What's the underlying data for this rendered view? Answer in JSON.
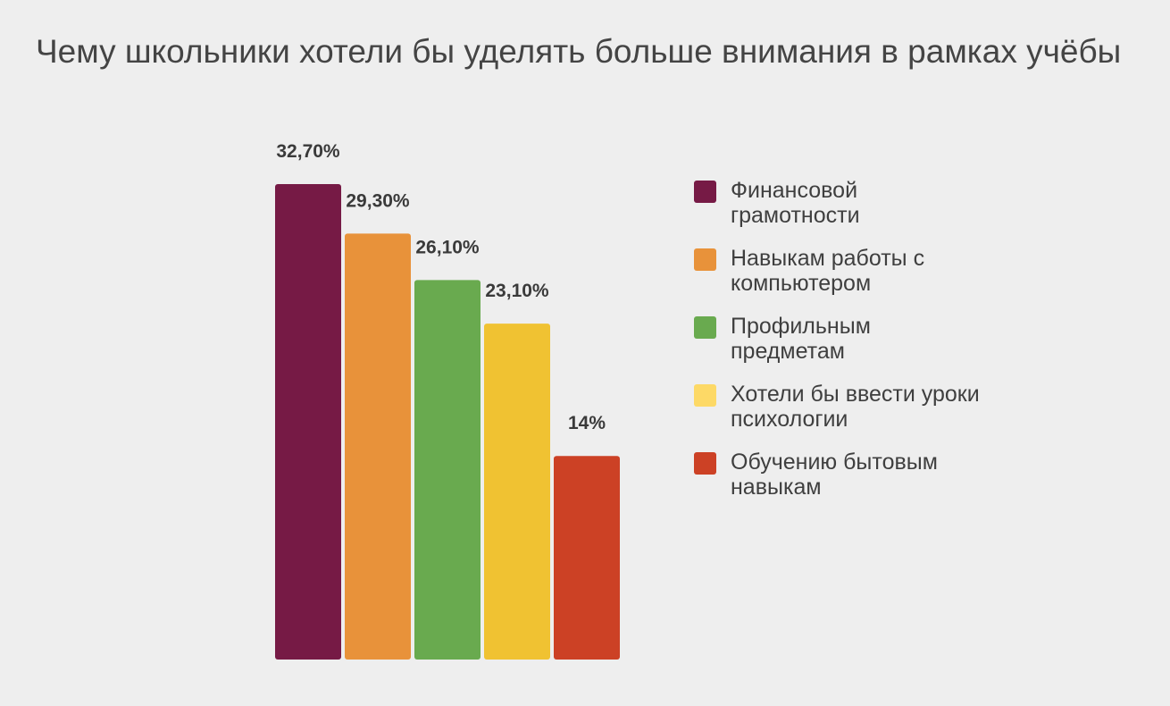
{
  "chart_data": {
    "type": "bar",
    "title": "Чему школьники хотели бы уделять больше внимания в рамках учёбы",
    "categories": [
      "Финансовой грамотности",
      "Навыкам работы с компьютером",
      "Профильным предметам",
      "Хотели бы ввести уроки психологии",
      "Обучению бытовым навыкам"
    ],
    "values": [
      32.7,
      29.3,
      26.1,
      23.1,
      14
    ],
    "value_labels": [
      "32,70%",
      "29,30%",
      "26,10%",
      "23,10%",
      "14%"
    ],
    "colors": [
      "#761a45",
      "#e8923a",
      "#69aa4f",
      "#f0c232",
      "#cc4125"
    ],
    "legend_colors": [
      "#761a45",
      "#e8923a",
      "#69aa4f",
      "#fdd966",
      "#cc4125"
    ],
    "ylim": [
      0,
      32.7
    ],
    "grid": false,
    "legend_position": "right"
  }
}
